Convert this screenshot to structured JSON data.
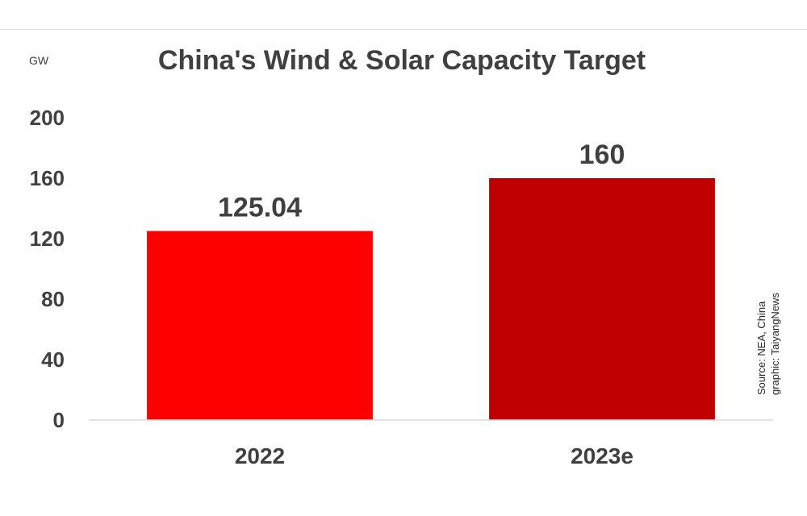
{
  "chart_data": {
    "type": "bar",
    "title": "China's Wind & Solar Capacity Target",
    "unit_label": "GW",
    "categories": [
      "2022",
      "2023e"
    ],
    "values": [
      125.04,
      160
    ],
    "value_labels": [
      "125.04",
      "160"
    ],
    "bar_colors": [
      "#ff0000",
      "#c00000"
    ],
    "ylim": [
      0,
      200
    ],
    "yticks": [
      "0",
      "40",
      "80",
      "120",
      "160",
      "200"
    ],
    "grid": false,
    "legend": "none"
  },
  "source": {
    "line1": "Source: NEA, China",
    "line2": "graphic: TaiyangNews"
  },
  "colors": {
    "text": "#404040",
    "axis": "#d9d9d9"
  }
}
